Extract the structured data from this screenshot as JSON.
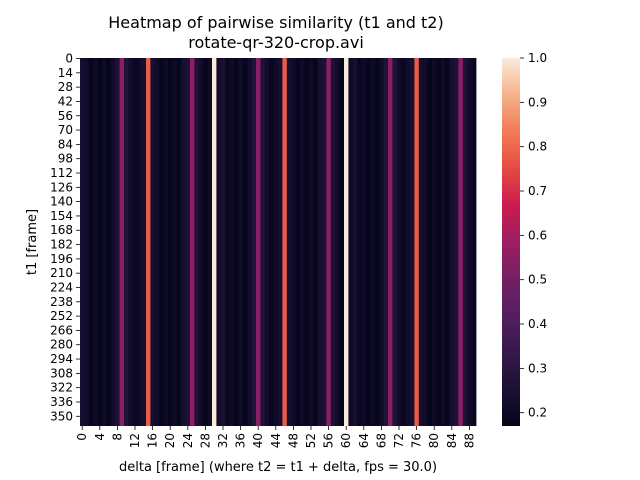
{
  "chart_data": {
    "type": "heatmap",
    "title": "Heatmap of pairwise similarity (t1 and t2)",
    "subtitle": "rotate-qr-320-crop.avi",
    "xlabel": "delta [frame] (where t2 = t1 + delta, fps = 30.0)",
    "ylabel": "t1 [frame]",
    "x_count": 90,
    "y_count": 360,
    "x_tick_labels": [
      "0",
      "4",
      "8",
      "12",
      "16",
      "20",
      "24",
      "28",
      "32",
      "36",
      "40",
      "44",
      "48",
      "52",
      "56",
      "60",
      "64",
      "68",
      "72",
      "76",
      "80",
      "84",
      "88"
    ],
    "y_tick_labels": [
      "0",
      "14",
      "28",
      "42",
      "56",
      "70",
      "84",
      "98",
      "112",
      "126",
      "140",
      "154",
      "168",
      "182",
      "196",
      "210",
      "224",
      "238",
      "252",
      "266",
      "280",
      "294",
      "308",
      "322",
      "336",
      "350"
    ],
    "colorbar": {
      "min": 0.17,
      "max": 1.0,
      "tick_labels": [
        "0.2",
        "0.3",
        "0.4",
        "0.5",
        "0.6",
        "0.7",
        "0.8",
        "0.9",
        "1.0"
      ],
      "colormap": "rocket"
    },
    "column_values": [
      0.24,
      0.22,
      0.18,
      0.21,
      0.18,
      0.21,
      0.18,
      0.22,
      0.26,
      0.55,
      0.27,
      0.22,
      0.19,
      0.21,
      0.24,
      0.78,
      0.24,
      0.22,
      0.18,
      0.21,
      0.18,
      0.21,
      0.18,
      0.24,
      0.26,
      0.55,
      0.26,
      0.22,
      0.18,
      0.21,
      1.0,
      0.22,
      0.25,
      0.19,
      0.21,
      0.18,
      0.22,
      0.18,
      0.22,
      0.27,
      0.55,
      0.27,
      0.22,
      0.19,
      0.21,
      0.24,
      0.78,
      0.24,
      0.22,
      0.18,
      0.21,
      0.18,
      0.21,
      0.18,
      0.24,
      0.26,
      0.55,
      0.26,
      0.22,
      0.18,
      1.0,
      0.21,
      0.24,
      0.19,
      0.21,
      0.18,
      0.21,
      0.18,
      0.22,
      0.27,
      0.55,
      0.27,
      0.22,
      0.19,
      0.22,
      0.24,
      0.78,
      0.24,
      0.22,
      0.18,
      0.21,
      0.18,
      0.21,
      0.18,
      0.24,
      0.26,
      0.55,
      0.26,
      0.22,
      0.19
    ]
  }
}
